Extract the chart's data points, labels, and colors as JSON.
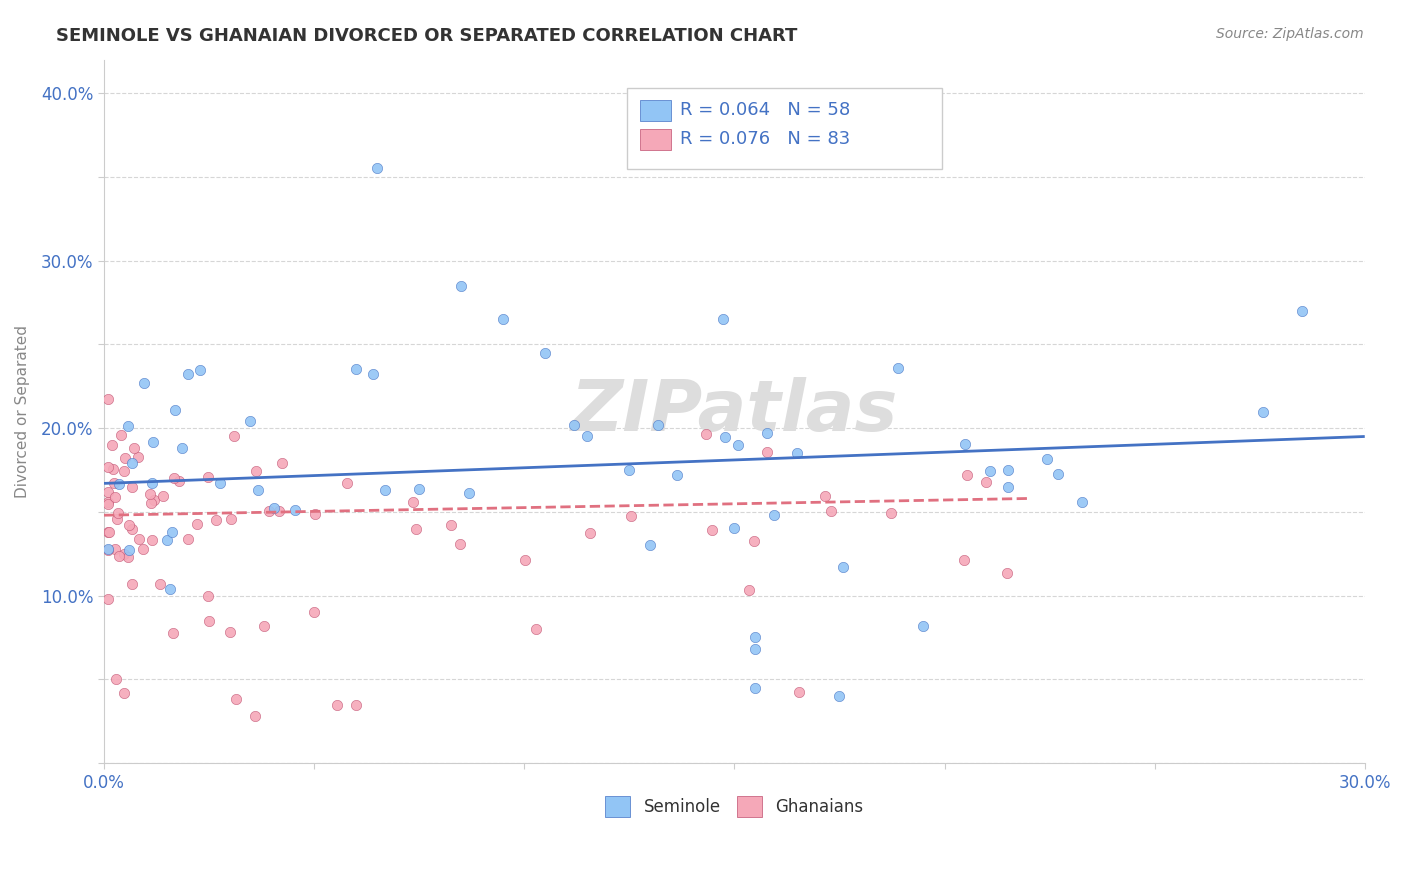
{
  "title": "SEMINOLE VS GHANAIAN DIVORCED OR SEPARATED CORRELATION CHART",
  "source_text": "Source: ZipAtlas.com",
  "ylabel": "Divorced or Separated",
  "xlim": [
    0.0,
    0.3
  ],
  "ylim": [
    0.0,
    0.42
  ],
  "x_tick_positions": [
    0.0,
    0.05,
    0.1,
    0.15,
    0.2,
    0.25,
    0.3
  ],
  "x_tick_labels": [
    "0.0%",
    "",
    "",
    "",
    "",
    "",
    "30.0%"
  ],
  "y_tick_positions": [
    0.0,
    0.05,
    0.1,
    0.15,
    0.2,
    0.25,
    0.3,
    0.35,
    0.4
  ],
  "y_tick_labels": [
    "",
    "",
    "10.0%",
    "",
    "20.0%",
    "",
    "30.0%",
    "",
    "40.0%"
  ],
  "seminole_color": "#92C5F5",
  "ghanaian_color": "#F5A8B8",
  "trend_seminole_color": "#4472C4",
  "trend_ghanaian_color": "#E07080",
  "watermark_color": "#DDDDDD",
  "legend_R_seminole": "R = 0.064",
  "legend_N_seminole": "N = 58",
  "legend_R_ghanaian": "R = 0.076",
  "legend_N_ghanaian": "N = 83",
  "legend_text_color": "#4472C4",
  "title_color": "#333333",
  "source_color": "#888888",
  "ylabel_color": "#888888",
  "tick_color": "#4472C4",
  "grid_color": "#CCCCCC",
  "spine_color": "#CCCCCC"
}
